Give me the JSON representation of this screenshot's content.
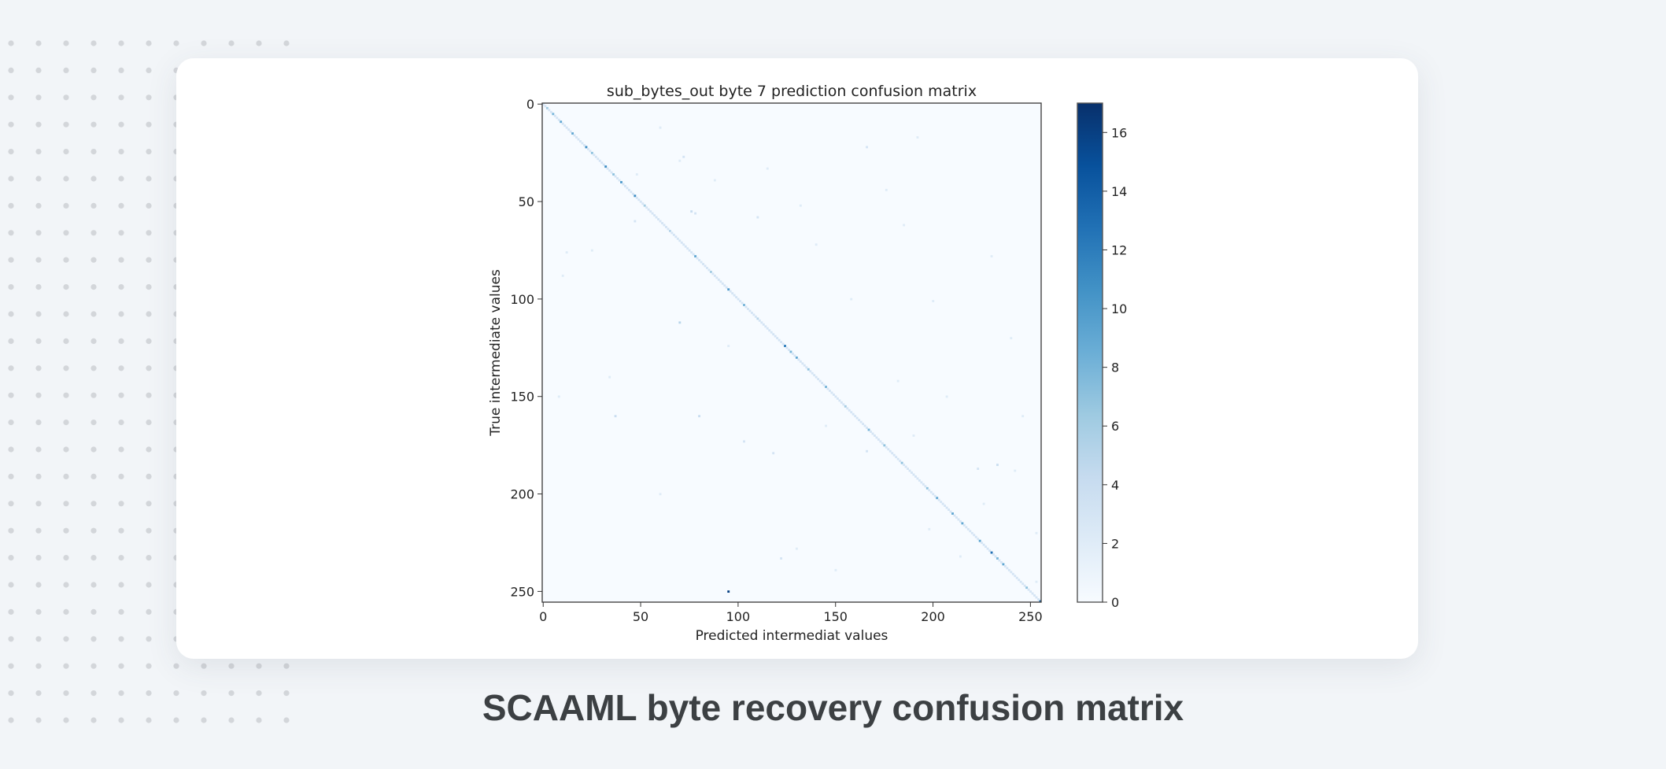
{
  "caption": "SCAAML byte recovery confusion matrix",
  "chart_data": {
    "type": "heatmap",
    "title": "sub_bytes_out byte 7 prediction confusion matrix",
    "xlabel": "Predicted intermediat values",
    "ylabel": "True intermediate values",
    "x_range": [
      0,
      255
    ],
    "y_range": [
      0,
      255
    ],
    "y_inverted": true,
    "x_ticks": [
      0,
      50,
      100,
      150,
      200,
      250
    ],
    "y_ticks": [
      0,
      50,
      100,
      150,
      200,
      250
    ],
    "colormap": "Blues",
    "color_range": [
      0,
      17
    ],
    "colorbar_ticks": [
      0,
      2,
      4,
      6,
      8,
      10,
      12,
      14,
      16
    ],
    "grid": false,
    "diagonal_baseline": 3,
    "diagonal_peaks": [
      [
        2,
        6
      ],
      [
        5,
        8
      ],
      [
        9,
        9
      ],
      [
        15,
        9
      ],
      [
        22,
        11
      ],
      [
        25,
        7
      ],
      [
        32,
        11
      ],
      [
        36,
        7
      ],
      [
        40,
        10
      ],
      [
        47,
        11
      ],
      [
        52,
        6
      ],
      [
        65,
        5
      ],
      [
        78,
        9
      ],
      [
        86,
        6
      ],
      [
        95,
        10
      ],
      [
        103,
        8
      ],
      [
        110,
        5
      ],
      [
        124,
        12
      ],
      [
        127,
        8
      ],
      [
        130,
        9
      ],
      [
        136,
        7
      ],
      [
        145,
        8
      ],
      [
        155,
        6
      ],
      [
        167,
        8
      ],
      [
        175,
        7
      ],
      [
        184,
        7
      ],
      [
        197,
        7
      ],
      [
        202,
        9
      ],
      [
        210,
        9
      ],
      [
        215,
        9
      ],
      [
        224,
        9
      ],
      [
        230,
        13
      ],
      [
        233,
        8
      ],
      [
        236,
        9
      ],
      [
        248,
        7
      ],
      [
        255,
        13
      ]
    ],
    "off_diagonal_cells": [
      [
        95,
        250,
        16
      ],
      [
        70,
        112,
        5
      ],
      [
        37,
        160,
        4
      ],
      [
        80,
        160,
        4
      ],
      [
        76,
        55,
        4
      ],
      [
        78,
        56,
        3
      ],
      [
        47,
        60,
        3
      ],
      [
        233,
        185,
        4
      ],
      [
        223,
        187,
        3
      ],
      [
        166,
        22,
        3
      ],
      [
        192,
        17,
        2
      ],
      [
        200,
        101,
        2
      ],
      [
        118,
        179,
        3
      ],
      [
        103,
        173,
        3
      ],
      [
        122,
        233,
        3
      ],
      [
        72,
        27,
        3
      ],
      [
        70,
        29,
        2
      ],
      [
        110,
        58,
        3
      ],
      [
        12,
        76,
        2
      ],
      [
        10,
        88,
        2
      ],
      [
        190,
        170,
        2
      ],
      [
        253,
        220,
        2
      ],
      [
        253,
        245,
        2
      ],
      [
        145,
        165,
        2
      ],
      [
        166,
        178,
        3
      ],
      [
        132,
        52,
        2
      ],
      [
        88,
        39,
        2
      ],
      [
        48,
        36,
        2
      ],
      [
        25,
        75,
        2
      ],
      [
        60,
        12,
        2
      ],
      [
        140,
        72,
        2
      ],
      [
        158,
        100,
        2
      ],
      [
        176,
        44,
        2
      ],
      [
        207,
        150,
        2
      ],
      [
        240,
        120,
        2
      ],
      [
        226,
        205,
        2
      ],
      [
        150,
        239,
        2
      ],
      [
        130,
        228,
        2
      ],
      [
        60,
        200,
        2
      ],
      [
        34,
        140,
        2
      ],
      [
        198,
        218,
        2
      ],
      [
        214,
        232,
        2
      ],
      [
        185,
        62,
        2
      ],
      [
        95,
        124,
        2
      ],
      [
        115,
        33,
        2
      ],
      [
        230,
        78,
        2
      ],
      [
        246,
        160,
        2
      ],
      [
        8,
        150,
        2
      ],
      [
        182,
        142,
        2
      ],
      [
        242,
        188,
        2
      ]
    ]
  }
}
